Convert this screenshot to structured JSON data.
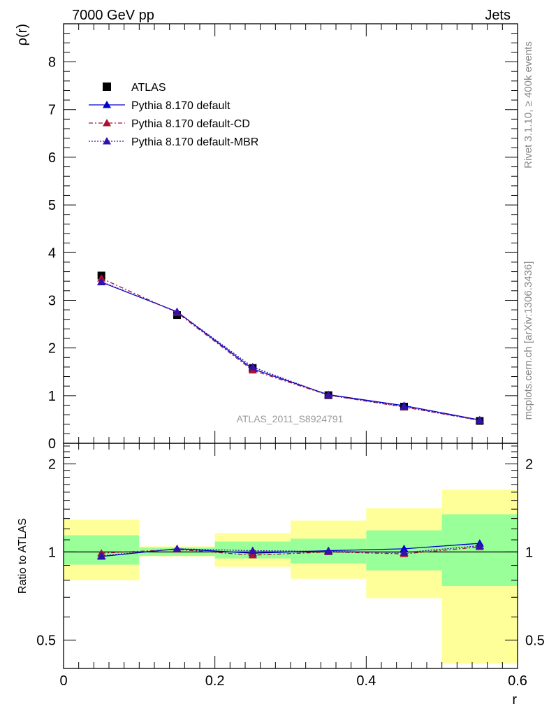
{
  "header": {
    "left": "7000 GeV pp",
    "right": "Jets"
  },
  "side_text": {
    "rivet": "Rivet 3.1.10, ≥ 400k events",
    "mcplots": "mcplots.cern.ch [arXiv:1306.3436]"
  },
  "watermark": "ATLAS_2011_S8924791",
  "colors": {
    "atlas": "#000000",
    "default": "#0000cc",
    "cd": "#aa1133",
    "mbr": "#3311aa",
    "band_inner": "#99ff99",
    "band_outer": "#ffff99"
  },
  "chart_data": [
    {
      "type": "line",
      "panel": "main",
      "ylabel": "ρ(r)",
      "xlim": [
        0,
        0.6
      ],
      "ylim": [
        0,
        8.8
      ],
      "yticks": [
        "0",
        "1",
        "2",
        "3",
        "4",
        "5",
        "6",
        "7",
        "8"
      ],
      "x": [
        0.05,
        0.15,
        0.25,
        0.35,
        0.45,
        0.55
      ],
      "series": [
        {
          "name": "ATLAS",
          "style": "data",
          "values": [
            3.52,
            2.69,
            1.58,
            1.01,
            0.77,
            0.47
          ]
        },
        {
          "name": "Pythia 8.170 default",
          "style": "solid",
          "values": [
            3.38,
            2.76,
            1.56,
            1.02,
            0.79,
            0.49
          ]
        },
        {
          "name": "Pythia 8.170 default-CD",
          "style": "dashdot",
          "values": [
            3.46,
            2.74,
            1.53,
            1.01,
            0.76,
            0.48
          ]
        },
        {
          "name": "Pythia 8.170 default-MBR",
          "style": "dotted",
          "values": [
            3.39,
            2.76,
            1.6,
            1.01,
            0.77,
            0.48
          ]
        }
      ],
      "legend": "top-left"
    },
    {
      "type": "line",
      "panel": "ratio",
      "ylabel": "Ratio to ATLAS",
      "xlabel": "r",
      "xlim": [
        0,
        0.6
      ],
      "ylim": [
        0.4,
        2.35
      ],
      "yscale": "log",
      "yticks": [
        "0.5",
        "1",
        "2"
      ],
      "xticks": [
        "0",
        "0.2",
        "0.4",
        "0.6"
      ],
      "bin_edges": [
        0.0,
        0.1,
        0.2,
        0.3,
        0.4,
        0.5,
        0.6
      ],
      "band_inner": [
        [
          0.905,
          1.14
        ],
        [
          0.97,
          1.035
        ],
        [
          0.95,
          1.085
        ],
        [
          0.915,
          1.11
        ],
        [
          0.865,
          1.185
        ],
        [
          0.765,
          1.345
        ]
      ],
      "band_outer": [
        [
          0.8,
          1.29
        ],
        [
          0.965,
          1.045
        ],
        [
          0.89,
          1.16
        ],
        [
          0.81,
          1.28
        ],
        [
          0.695,
          1.41
        ],
        [
          0.415,
          1.63
        ]
      ],
      "x": [
        0.05,
        0.15,
        0.25,
        0.35,
        0.45,
        0.55
      ],
      "series": [
        {
          "name": "Pythia 8.170 default",
          "style": "solid",
          "values": [
            0.965,
            1.025,
            0.99,
            1.01,
            1.025,
            1.07
          ]
        },
        {
          "name": "Pythia 8.170 default-CD",
          "style": "dashdot",
          "values": [
            0.99,
            1.02,
            0.975,
            1.0,
            0.985,
            1.04
          ]
        },
        {
          "name": "Pythia 8.170 default-MBR",
          "style": "dotted",
          "values": [
            0.97,
            1.025,
            1.01,
            1.005,
            0.995,
            1.05
          ]
        }
      ]
    }
  ]
}
